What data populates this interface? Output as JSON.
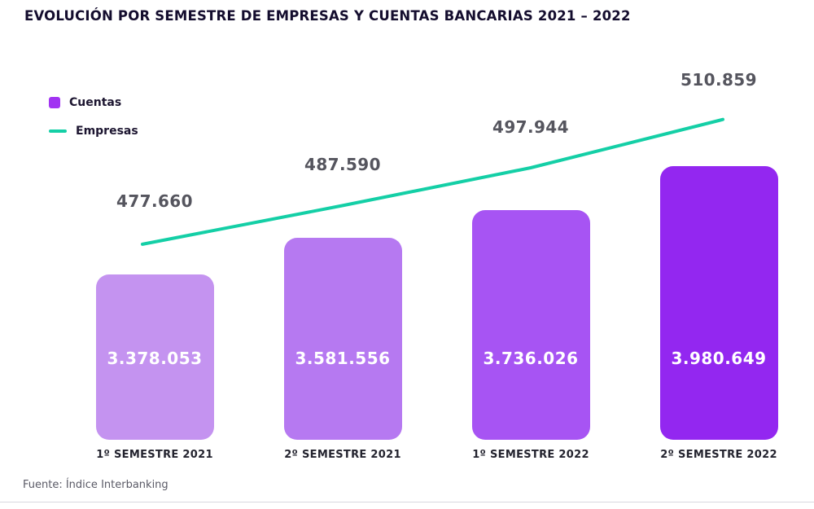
{
  "title": "EVOLUCIÓN POR SEMESTRE DE EMPRESAS Y CUENTAS BANCARIAS 2021 – 2022",
  "legend": {
    "cuentas_label": "Cuentas",
    "empresas_label": "Empresas"
  },
  "source": "Fuente: Índice Interbanking",
  "colors": {
    "bar_colors": [
      "#C493F0",
      "#B679F1",
      "#A754F3",
      "#9327F0"
    ],
    "empresas_line": "#14CFA6",
    "cuentas_swatch": "#A133F2",
    "title_text": "#140D2E",
    "line_label_text": "#55555E",
    "bar_label_text": "#FFFFFF",
    "category_text": "#23232E",
    "source_text": "#5A5A66",
    "divider": "#D8D8DF"
  },
  "chart_data": {
    "type": "bar",
    "title": "EVOLUCIÓN POR SEMESTRE DE EMPRESAS Y CUENTAS BANCARIAS 2021 – 2022",
    "categories": [
      "1º SEMESTRE 2021",
      "2º SEMESTRE 2021",
      "1º SEMESTRE 2022",
      "2º SEMESTRE 2022"
    ],
    "series": [
      {
        "name": "Cuentas",
        "type": "bar",
        "values": [
          3378053,
          3581556,
          3736026,
          3980649
        ],
        "labels": [
          "3.378.053",
          "3.581.556",
          "3.736.026",
          "3.980.649"
        ]
      },
      {
        "name": "Empresas",
        "type": "line",
        "values": [
          477660,
          487590,
          497944,
          510859
        ],
        "labels": [
          "477.660",
          "487.590",
          "497.944",
          "510.859"
        ]
      }
    ],
    "legend_position": "top-left",
    "grid": false,
    "xlabel": "",
    "ylabel": ""
  }
}
